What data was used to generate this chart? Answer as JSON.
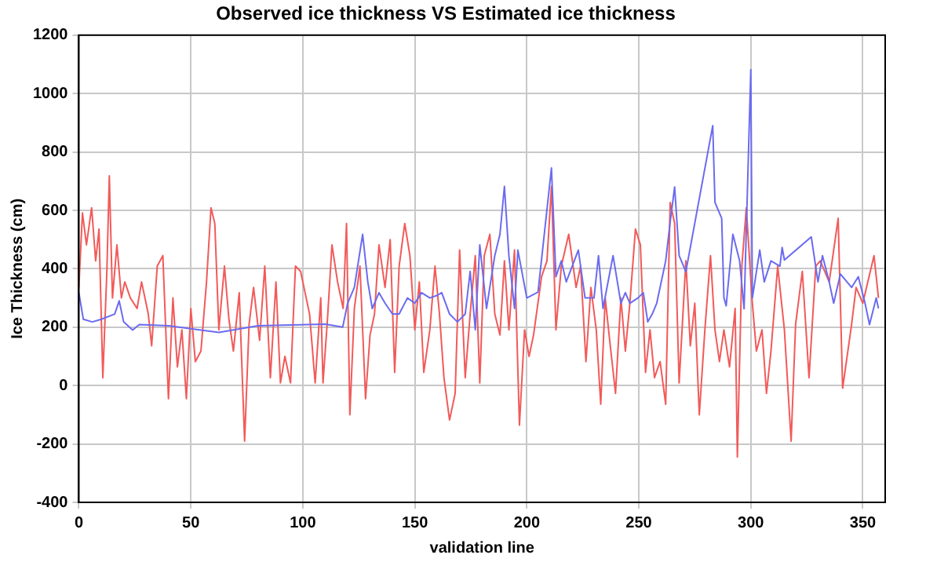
{
  "chart_data": {
    "type": "line",
    "title": "Observed ice thickness VS Estimated ice thickness",
    "xlabel": "validation line",
    "ylabel": "Ice Thickness (cm)",
    "xlim": [
      0,
      360
    ],
    "xticks": [
      0,
      50,
      100,
      150,
      200,
      250,
      300,
      350
    ],
    "ylim": [
      -400,
      1200
    ],
    "yticks": [
      -400,
      -200,
      0,
      200,
      400,
      600,
      800,
      1000,
      1200
    ],
    "grid": true,
    "legend": false,
    "marker": "none",
    "line_style": "solid",
    "series": [
      {
        "color": "#6b6bf0",
        "x": [
          0,
          2,
          6,
          10,
          16,
          18,
          20,
          24,
          27,
          40,
          62.5,
          80,
          110,
          117.8,
          120,
          123,
          126.7,
          129,
          131,
          134,
          136.7,
          140,
          143,
          146.7,
          150,
          153,
          156.7,
          160,
          162,
          165.5,
          169,
          172.5,
          174.7,
          177,
          179,
          182,
          185.7,
          188,
          190,
          192,
          194.5,
          196,
          200,
          205,
          211,
          213,
          215.4,
          217.6,
          223,
          226,
          230,
          232,
          234,
          238.5,
          242,
          244,
          246,
          249.6,
          252,
          254,
          256,
          258,
          262,
          264,
          266,
          268,
          271,
          283,
          284,
          287,
          288,
          289,
          292,
          295,
          297,
          300,
          300.7,
          304,
          306,
          309,
          313,
          314,
          315,
          327,
          330,
          332,
          335,
          337,
          340,
          345,
          348,
          351,
          353,
          356,
          357
        ],
        "values": [
          318,
          227,
          218,
          227,
          245,
          290,
          218,
          190,
          209,
          205,
          182,
          205,
          210,
          200,
          282,
          336,
          518,
          355,
          264,
          318,
          282,
          245,
          245,
          300,
          282,
          318,
          300,
          309,
          318,
          245,
          218,
          245,
          391,
          191,
          482,
          264,
          445,
          518,
          682,
          445,
          264,
          464,
          300,
          320,
          745,
          373,
          427,
          355,
          464,
          300,
          300,
          445,
          264,
          445,
          282,
          318,
          282,
          300,
          318,
          218,
          245,
          282,
          427,
          560,
          680,
          445,
          390,
          890,
          627,
          573,
          300,
          273,
          518,
          427,
          263,
          1082,
          300,
          464,
          355,
          427,
          409,
          473,
          430,
          509,
          355,
          445,
          355,
          282,
          382,
          336,
          373,
          282,
          209,
          300,
          264
        ]
      },
      {
        "color": "#f25a5a",
        "x": [
          0,
          1.6,
          3.4,
          5.7,
          7.5,
          9,
          10.7,
          12.5,
          13.6,
          15,
          17,
          19,
          20.5,
          23,
          26,
          28,
          31,
          32.5,
          35,
          37.5,
          40,
          42,
          44,
          46,
          48,
          50,
          52,
          54.5,
          57,
          59,
          60.7,
          62.5,
          65,
          67,
          69,
          71.6,
          74,
          76,
          78,
          80.7,
          83,
          85.5,
          88,
          90,
          92,
          94.5,
          96.7,
          99,
          101,
          103,
          105.5,
          108,
          109,
          111,
          113,
          115.5,
          118,
          119.5,
          121,
          123,
          125.5,
          128,
          130,
          132,
          134,
          136.7,
          139,
          141,
          143,
          145.5,
          147.8,
          150,
          152,
          154,
          156.7,
          159,
          161,
          163,
          165.5,
          168,
          170,
          172.5,
          174.7,
          177,
          179,
          181,
          183.5,
          185.7,
          188,
          190,
          192,
          194.5,
          196.7,
          199,
          201,
          203,
          206.6,
          209,
          211,
          213,
          215.4,
          218.7,
          222,
          224,
          226.4,
          228.6,
          231,
          233,
          235,
          237,
          239.6,
          242,
          244,
          246,
          248.5,
          250.7,
          253,
          255,
          257,
          259.5,
          262,
          264,
          266,
          268,
          271,
          273,
          275,
          277,
          279.5,
          282,
          284,
          286,
          288,
          290.5,
          293,
          294,
          296,
          298,
          300.5,
          302.5,
          305,
          307,
          309,
          312,
          315,
          318,
          320,
          323,
          326,
          329,
          331,
          335,
          339,
          341,
          345,
          347,
          350,
          355,
          357
        ],
        "values": [
          336,
          591,
          482,
          609,
          427,
          536,
          27,
          391,
          718,
          300,
          482,
          300,
          355,
          300,
          264,
          355,
          245,
          136,
          409,
          445,
          -45,
          300,
          64,
          191,
          -45,
          264,
          82,
          118,
          355,
          609,
          555,
          191,
          409,
          227,
          118,
          318,
          -190,
          209,
          336,
          155,
          409,
          27,
          355,
          9,
          100,
          9,
          409,
          391,
          318,
          245,
          9,
          300,
          9,
          227,
          482,
          355,
          264,
          555,
          -100,
          264,
          409,
          -45,
          173,
          245,
          482,
          336,
          500,
          45,
          409,
          555,
          445,
          191,
          355,
          45,
          191,
          409,
          245,
          27,
          -118,
          -27,
          464,
          27,
          245,
          445,
          9,
          445,
          518,
          245,
          173,
          427,
          191,
          464,
          -136,
          191,
          100,
          173,
          373,
          427,
          682,
          191,
          409,
          518,
          336,
          409,
          82,
          336,
          191,
          -64,
          300,
          155,
          -27,
          300,
          118,
          282,
          536,
          482,
          45,
          191,
          27,
          82,
          -64,
          627,
          555,
          9,
          427,
          136,
          282,
          -100,
          191,
          445,
          191,
          82,
          191,
          64,
          264,
          -245,
          409,
          609,
          300,
          118,
          191,
          -27,
          118,
          409,
          191,
          -190,
          209,
          391,
          27,
          409,
          427,
          355,
          573,
          -9,
          209,
          336,
          282,
          445,
          300
        ]
      }
    ]
  }
}
